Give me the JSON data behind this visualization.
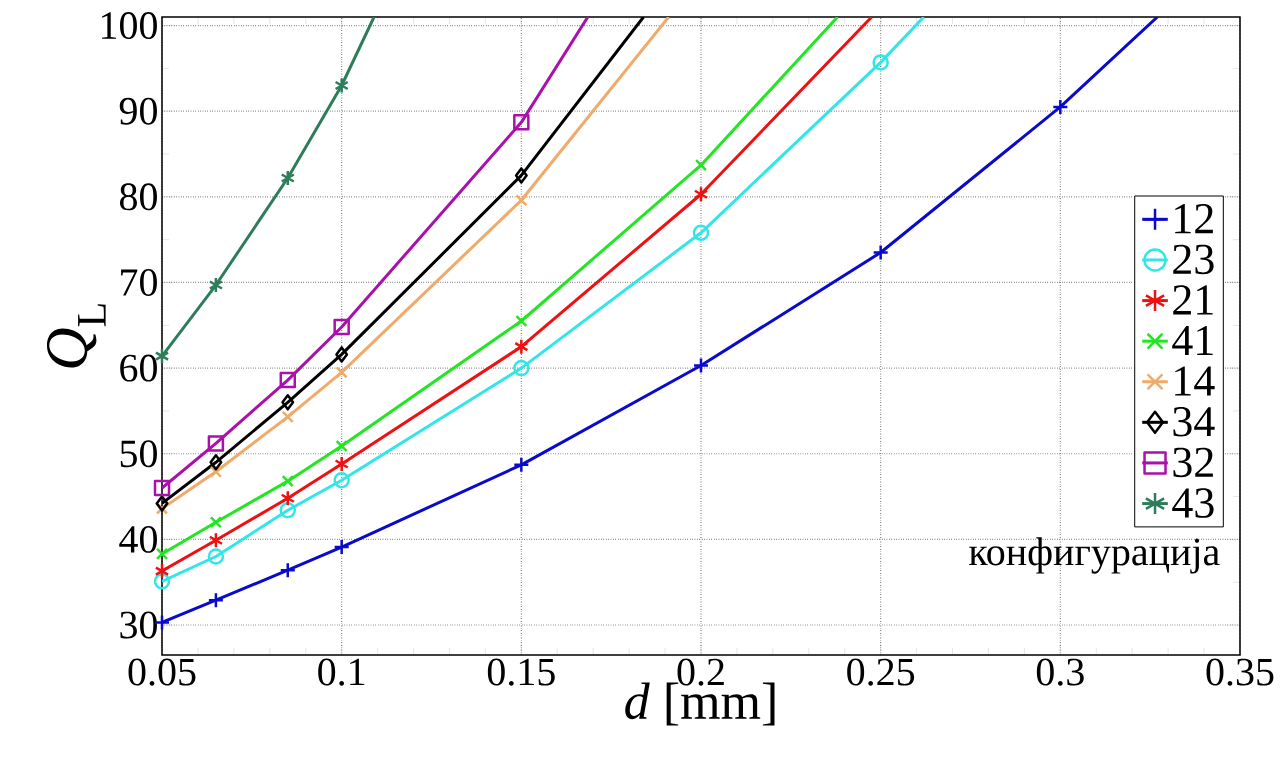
{
  "chart_data": {
    "type": "line",
    "xlabel": "*d* [mm]",
    "ylabel": "*Q*$_{L}$",
    "legend_title": "конфигурација",
    "xlim": [
      0.05,
      0.35
    ],
    "ylim": [
      26.5,
      101
    ],
    "xticks": [
      0.05,
      0.1,
      0.15,
      0.2,
      0.25,
      0.3,
      0.35
    ],
    "yticks": [
      30,
      40,
      50,
      60,
      70,
      80,
      90,
      100
    ],
    "grid": true,
    "legend": "right",
    "series": [
      {
        "name": "12",
        "color": "#0a0acc",
        "marker": "plus",
        "x": [
          0.05,
          0.065,
          0.085,
          0.1,
          0.15,
          0.2,
          0.25,
          0.3,
          0.327
        ],
        "values": [
          30.3,
          32.9,
          36.4,
          39.1,
          48.7,
          60.3,
          73.5,
          90.5,
          101
        ]
      },
      {
        "name": "23",
        "color": "#33e6e6",
        "marker": "circle",
        "x": [
          0.05,
          0.065,
          0.085,
          0.1,
          0.15,
          0.2,
          0.25,
          0.262
        ],
        "values": [
          35.1,
          38.0,
          43.4,
          46.9,
          60.0,
          75.8,
          95.7,
          101
        ]
      },
      {
        "name": "21",
        "color": "#ee1111",
        "marker": "cross",
        "x": [
          0.05,
          0.065,
          0.085,
          0.1,
          0.15,
          0.2,
          0.2475
        ],
        "values": [
          36.3,
          39.9,
          44.8,
          48.8,
          62.5,
          80.3,
          101
        ]
      },
      {
        "name": "41",
        "color": "#22e622",
        "marker": "x",
        "x": [
          0.05,
          0.065,
          0.085,
          0.1,
          0.15,
          0.2,
          0.238
        ],
        "values": [
          38.3,
          42.0,
          46.8,
          50.9,
          65.5,
          83.7,
          101
        ]
      },
      {
        "name": "14",
        "color": "#f0aa6a",
        "marker": "x",
        "x": [
          0.05,
          0.065,
          0.085,
          0.1,
          0.15,
          0.191
        ],
        "values": [
          43.6,
          47.9,
          54.3,
          59.5,
          79.6,
          101
        ]
      },
      {
        "name": "34",
        "color": "#000000",
        "marker": "diamond",
        "x": [
          0.05,
          0.065,
          0.085,
          0.1,
          0.15,
          0.184
        ],
        "values": [
          44.2,
          49.0,
          56.0,
          61.6,
          82.5,
          101
        ]
      },
      {
        "name": "32",
        "color": "#aa10aa",
        "marker": "square",
        "x": [
          0.05,
          0.065,
          0.085,
          0.1,
          0.15,
          0.1685
        ],
        "values": [
          46.0,
          51.2,
          58.6,
          64.8,
          88.7,
          101
        ]
      },
      {
        "name": "43",
        "color": "#2e7d5a",
        "marker": "cross",
        "x": [
          0.05,
          0.065,
          0.085,
          0.1,
          0.109
        ],
        "values": [
          61.4,
          69.7,
          82.2,
          93.0,
          101
        ]
      }
    ]
  }
}
